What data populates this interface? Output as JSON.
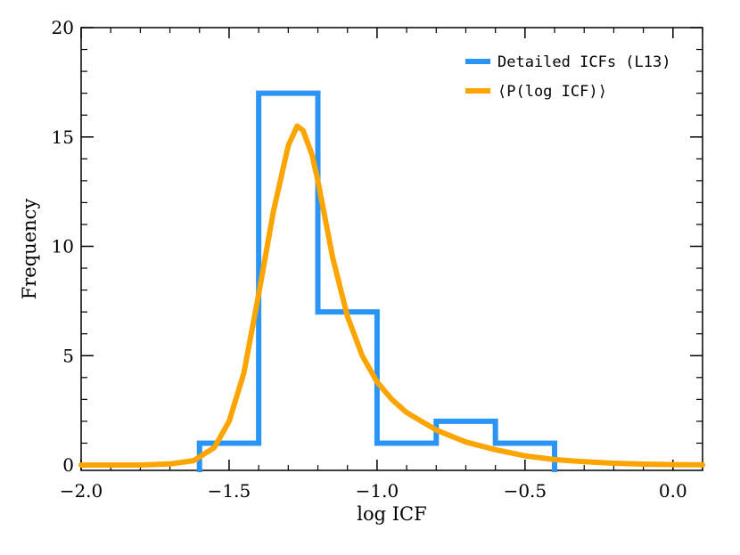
{
  "chart_data": {
    "type": "histogram",
    "xlabel": "log ICF",
    "ylabel": "Frequency",
    "xlim": [
      -2.0,
      0.1
    ],
    "ylim": [
      0,
      20
    ],
    "x_ticks": [
      -2.0,
      -1.5,
      -1.0,
      -0.5,
      0.0
    ],
    "x_tick_labels": [
      "−2.0",
      "−1.5",
      "−1.0",
      "−0.5",
      "0.0"
    ],
    "y_ticks": [
      0,
      5,
      10,
      15,
      20
    ],
    "y_tick_labels": [
      "0",
      "5",
      "10",
      "15",
      "20"
    ],
    "legend_position": "top-right",
    "series": [
      {
        "name": "Detailed ICFs (L13)",
        "kind": "step",
        "color": "#2b95f5",
        "bin_edges": [
          -1.6,
          -1.4,
          -1.2,
          -1.0,
          -0.8,
          -0.6,
          -0.4
        ],
        "counts": [
          1,
          17,
          7,
          1,
          2,
          1
        ]
      },
      {
        "name": "⟨P(log ICF)⟩",
        "kind": "curve",
        "color": "#fca500",
        "points": [
          [
            -2.0,
            0.0
          ],
          [
            -1.8,
            0.0
          ],
          [
            -1.7,
            0.05
          ],
          [
            -1.62,
            0.2
          ],
          [
            -1.55,
            0.8
          ],
          [
            -1.5,
            2.0
          ],
          [
            -1.45,
            4.2
          ],
          [
            -1.4,
            7.8
          ],
          [
            -1.35,
            11.6
          ],
          [
            -1.3,
            14.6
          ],
          [
            -1.27,
            15.5
          ],
          [
            -1.25,
            15.3
          ],
          [
            -1.22,
            14.2
          ],
          [
            -1.2,
            13.0
          ],
          [
            -1.15,
            9.5
          ],
          [
            -1.1,
            6.8
          ],
          [
            -1.05,
            5.0
          ],
          [
            -1.0,
            3.8
          ],
          [
            -0.95,
            3.0
          ],
          [
            -0.9,
            2.4
          ],
          [
            -0.8,
            1.6
          ],
          [
            -0.7,
            1.05
          ],
          [
            -0.6,
            0.7
          ],
          [
            -0.5,
            0.42
          ],
          [
            -0.4,
            0.25
          ],
          [
            -0.3,
            0.15
          ],
          [
            -0.2,
            0.08
          ],
          [
            -0.1,
            0.04
          ],
          [
            0.0,
            0.02
          ],
          [
            0.1,
            0.01
          ]
        ]
      }
    ]
  }
}
